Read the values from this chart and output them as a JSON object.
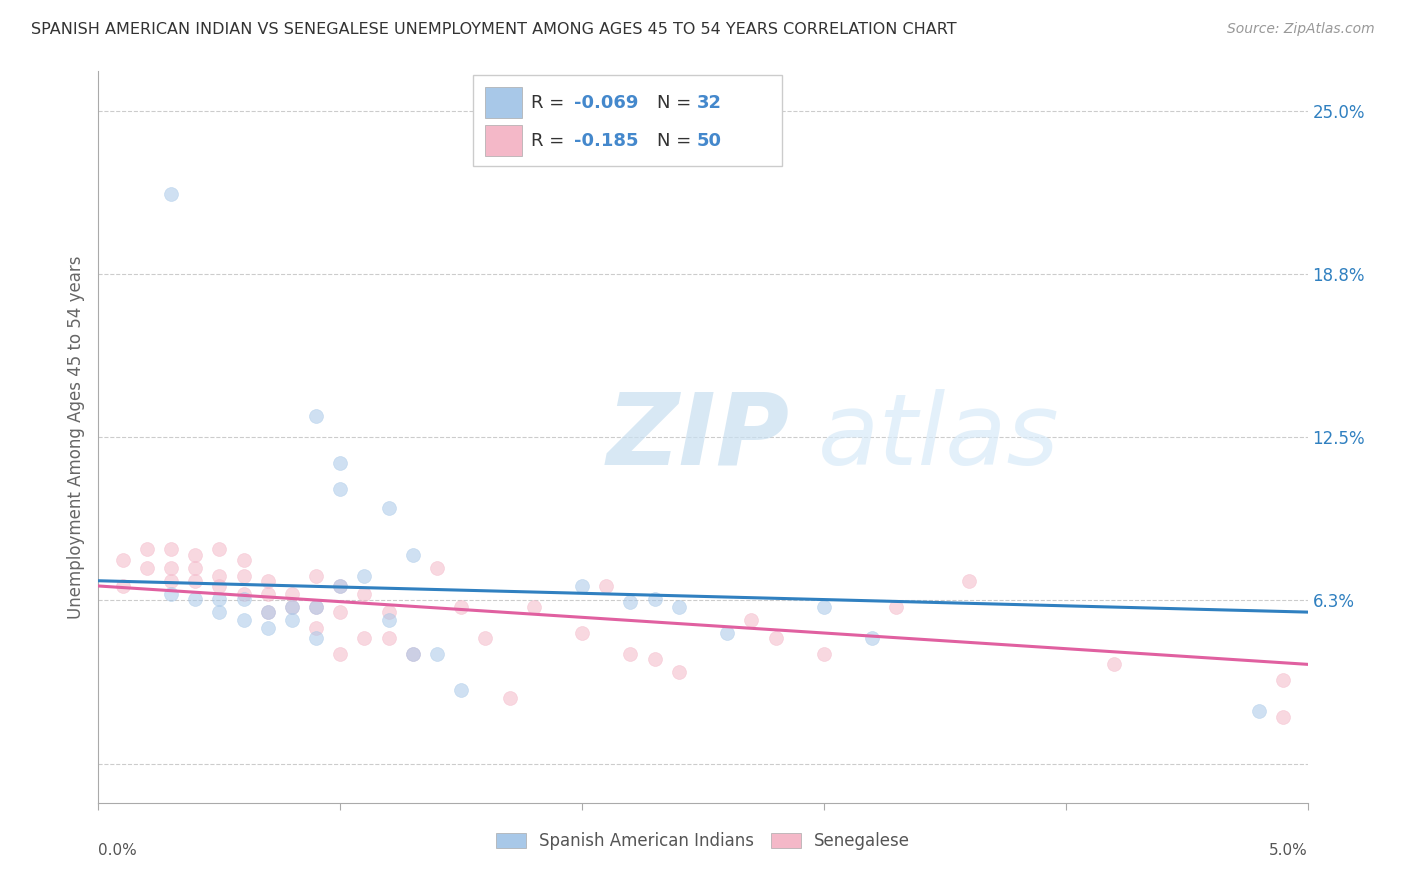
{
  "title": "SPANISH AMERICAN INDIAN VS SENEGALESE UNEMPLOYMENT AMONG AGES 45 TO 54 YEARS CORRELATION CHART",
  "source": "Source: ZipAtlas.com",
  "ylabel": "Unemployment Among Ages 45 to 54 years",
  "right_yticks": [
    0.0,
    0.0625,
    0.125,
    0.1875,
    0.25
  ],
  "right_yticklabels": [
    "",
    "6.3%",
    "12.5%",
    "18.8%",
    "25.0%"
  ],
  "xlim": [
    0.0,
    0.05
  ],
  "ylim": [
    -0.015,
    0.265
  ],
  "blue_color": "#a8c8e8",
  "pink_color": "#f4b8c8",
  "blue_line_color": "#3080c0",
  "pink_line_color": "#e060a0",
  "legend_text_color": "#4488cc",
  "blue_scatter": [
    [
      0.003,
      0.218
    ],
    [
      0.009,
      0.133
    ],
    [
      0.01,
      0.115
    ],
    [
      0.01,
      0.105
    ],
    [
      0.012,
      0.098
    ],
    [
      0.013,
      0.08
    ],
    [
      0.003,
      0.065
    ],
    [
      0.004,
      0.063
    ],
    [
      0.005,
      0.063
    ],
    [
      0.005,
      0.058
    ],
    [
      0.006,
      0.063
    ],
    [
      0.006,
      0.055
    ],
    [
      0.007,
      0.058
    ],
    [
      0.007,
      0.052
    ],
    [
      0.008,
      0.06
    ],
    [
      0.008,
      0.055
    ],
    [
      0.009,
      0.06
    ],
    [
      0.009,
      0.048
    ],
    [
      0.01,
      0.068
    ],
    [
      0.011,
      0.072
    ],
    [
      0.012,
      0.055
    ],
    [
      0.013,
      0.042
    ],
    [
      0.014,
      0.042
    ],
    [
      0.015,
      0.028
    ],
    [
      0.02,
      0.068
    ],
    [
      0.022,
      0.062
    ],
    [
      0.023,
      0.063
    ],
    [
      0.024,
      0.06
    ],
    [
      0.026,
      0.05
    ],
    [
      0.03,
      0.06
    ],
    [
      0.032,
      0.048
    ],
    [
      0.048,
      0.02
    ]
  ],
  "pink_scatter": [
    [
      0.001,
      0.078
    ],
    [
      0.001,
      0.068
    ],
    [
      0.002,
      0.075
    ],
    [
      0.002,
      0.082
    ],
    [
      0.003,
      0.082
    ],
    [
      0.003,
      0.075
    ],
    [
      0.003,
      0.07
    ],
    [
      0.004,
      0.08
    ],
    [
      0.004,
      0.075
    ],
    [
      0.004,
      0.07
    ],
    [
      0.005,
      0.082
    ],
    [
      0.005,
      0.072
    ],
    [
      0.005,
      0.068
    ],
    [
      0.006,
      0.078
    ],
    [
      0.006,
      0.072
    ],
    [
      0.006,
      0.065
    ],
    [
      0.007,
      0.07
    ],
    [
      0.007,
      0.065
    ],
    [
      0.007,
      0.058
    ],
    [
      0.008,
      0.065
    ],
    [
      0.008,
      0.06
    ],
    [
      0.009,
      0.072
    ],
    [
      0.009,
      0.06
    ],
    [
      0.009,
      0.052
    ],
    [
      0.01,
      0.068
    ],
    [
      0.01,
      0.058
    ],
    [
      0.01,
      0.042
    ],
    [
      0.011,
      0.065
    ],
    [
      0.011,
      0.048
    ],
    [
      0.012,
      0.058
    ],
    [
      0.012,
      0.048
    ],
    [
      0.013,
      0.042
    ],
    [
      0.014,
      0.075
    ],
    [
      0.015,
      0.06
    ],
    [
      0.016,
      0.048
    ],
    [
      0.017,
      0.025
    ],
    [
      0.018,
      0.06
    ],
    [
      0.02,
      0.05
    ],
    [
      0.021,
      0.068
    ],
    [
      0.022,
      0.042
    ],
    [
      0.023,
      0.04
    ],
    [
      0.024,
      0.035
    ],
    [
      0.027,
      0.055
    ],
    [
      0.028,
      0.048
    ],
    [
      0.03,
      0.042
    ],
    [
      0.033,
      0.06
    ],
    [
      0.036,
      0.07
    ],
    [
      0.042,
      0.038
    ],
    [
      0.049,
      0.032
    ],
    [
      0.049,
      0.018
    ]
  ],
  "blue_line_x": [
    0.0,
    0.05
  ],
  "blue_line_y": [
    0.07,
    0.058
  ],
  "pink_line_x": [
    0.0,
    0.05
  ],
  "pink_line_y": [
    0.068,
    0.038
  ],
  "watermark_zip": "ZIP",
  "watermark_atlas": "atlas",
  "grid_color": "#cccccc",
  "background_color": "#ffffff",
  "scatter_size": 100,
  "scatter_alpha": 0.55
}
